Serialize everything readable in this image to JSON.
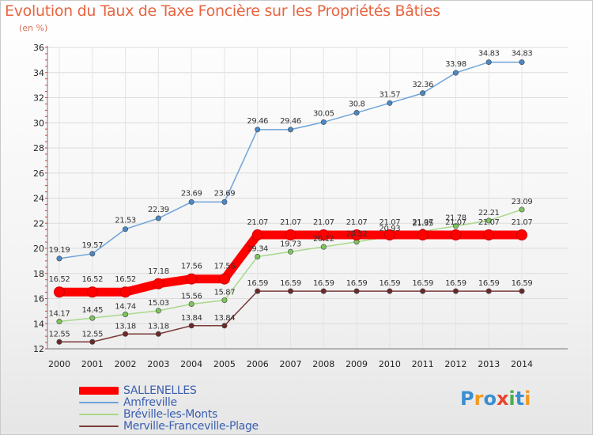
{
  "title": "Evolution du Taux de Taxe Foncière sur les Propriétés Bâties",
  "unit": "(en %)",
  "logo_text": "Proxiti",
  "logo_colors": [
    "#3b8fd0",
    "#f39a1e",
    "#3b8fd0",
    "#e8452e",
    "#4cae4c",
    "#3b8fd0",
    "#f39a1e"
  ],
  "chart_data": {
    "type": "line",
    "title": "Evolution du Taux de Taxe Foncière sur les Propriétés Bâties",
    "ylabel": "(en %)",
    "xlabel": "",
    "ylim": [
      12,
      36
    ],
    "yticks": [
      12,
      14,
      16,
      18,
      20,
      22,
      24,
      26,
      28,
      30,
      32,
      34,
      36
    ],
    "grid": true,
    "legend_position": "bottom-left",
    "x": [
      "2000",
      "2001",
      "2002",
      "2003",
      "2004",
      "2005",
      "2006",
      "2007",
      "2008",
      "2009",
      "2010",
      "2011",
      "2012",
      "2013",
      "2014"
    ],
    "series": [
      {
        "name": "Amfreville",
        "color": "#6fa3d8",
        "marker": "#4a88c4",
        "values": [
          19.19,
          19.57,
          21.53,
          22.39,
          23.69,
          23.69,
          29.46,
          29.46,
          30.05,
          30.8,
          31.57,
          32.36,
          33.98,
          34.83,
          34.83
        ],
        "labels": [
          "19.19",
          "19.57",
          "21.53",
          "22.39",
          "23.69",
          "23.69",
          "29.46",
          "29.46",
          "30.05",
          "30.8",
          "31.57",
          "32.36",
          "33.98",
          "34.83",
          "34.83"
        ]
      },
      {
        "name": "Bréville-les-Monts",
        "color": "#a9d88a",
        "marker": "#7cc55a",
        "values": [
          14.17,
          14.45,
          14.74,
          15.03,
          15.56,
          15.87,
          19.34,
          19.73,
          20.12,
          20.52,
          20.93,
          21.35,
          21.78,
          22.21,
          23.09
        ],
        "labels": [
          "14.17",
          "14.45",
          "14.74",
          "15.03",
          "15.56",
          "15.87",
          "19.34",
          "19.73",
          "20.12",
          "20.52",
          "20.93",
          "21.35",
          "21.78",
          "22.21",
          "23.09"
        ]
      },
      {
        "name": "Merville-Franceville-Plage",
        "color": "#7b3a3a",
        "marker": "#6b2a2a",
        "values": [
          12.55,
          12.55,
          13.18,
          13.18,
          13.84,
          13.84,
          16.59,
          16.59,
          16.59,
          16.59,
          16.59,
          16.59,
          16.59,
          16.59,
          16.59
        ],
        "labels": [
          "12.55",
          "12.55",
          "13.18",
          "13.18",
          "13.84",
          "13.84",
          "16.59",
          "16.59",
          "16.59",
          "16.59",
          "16.59",
          "16.59",
          "16.59",
          "16.59",
          "16.59"
        ]
      },
      {
        "name": "SALLENELLES",
        "color": "#ff0000",
        "marker": "#ff0000",
        "highlight": true,
        "values": [
          16.52,
          16.52,
          16.52,
          17.18,
          17.56,
          17.56,
          21.07,
          21.07,
          21.07,
          21.07,
          21.07,
          21.07,
          21.07,
          21.07,
          21.07
        ],
        "labels": [
          "16.52",
          "16.52",
          "16.52",
          "17.18",
          "17.56",
          "17.56",
          "21.07",
          "21.07",
          "21.07",
          "21.07",
          "21.07",
          "21.07",
          "21.07",
          "21.07",
          "21.07"
        ]
      }
    ],
    "legend": [
      {
        "name": "SALLENELLES",
        "color": "#ff0000"
      },
      {
        "name": "Amfreville",
        "color": "#6fa3d8"
      },
      {
        "name": "Bréville-les-Monts",
        "color": "#a9d88a"
      },
      {
        "name": "Merville-Franceville-Plage",
        "color": "#7b3a3a"
      }
    ]
  }
}
